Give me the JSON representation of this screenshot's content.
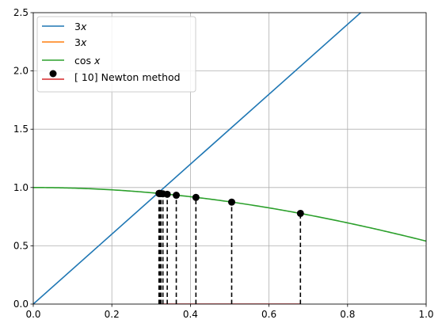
{
  "chart_data": {
    "type": "line",
    "xlim": [
      0,
      1
    ],
    "ylim": [
      0,
      2.5
    ],
    "xticks": [
      "0.0",
      "0.2",
      "0.4",
      "0.6",
      "0.8",
      "1.0"
    ],
    "yticks": [
      "0.0",
      "0.5",
      "1.0",
      "1.5",
      "2.0",
      "2.5"
    ],
    "xtick_values": [
      0,
      0.2,
      0.4,
      0.6,
      0.8,
      1.0
    ],
    "ytick_values": [
      0,
      0.5,
      1.0,
      1.5,
      2.0,
      2.5
    ],
    "grid": true,
    "legend_position": "top-left",
    "series": [
      {
        "name": "3x",
        "legend_label": "3x",
        "color": "#1f77b4",
        "x": [
          0,
          1
        ],
        "y": [
          0,
          3
        ]
      },
      {
        "name": "3x",
        "legend_label": "3x",
        "color": "#ff7f0e",
        "x": [],
        "y": []
      },
      {
        "name": "cos x",
        "legend_label": "cos x",
        "color": "#2ca02c",
        "function": "cos",
        "x": [
          0,
          1
        ]
      },
      {
        "name": "[ 10] Newton method",
        "legend_label": "[ 10] Newton method",
        "color": "#000000",
        "stem_color": "#d62728",
        "x": [
          0.68,
          0.505,
          0.414,
          0.364,
          0.341,
          0.33,
          0.325,
          0.322,
          0.3205,
          0.32
        ],
        "y": [
          0.778,
          0.875,
          0.915,
          0.934,
          0.942,
          0.946,
          0.948,
          0.949,
          0.949,
          0.949
        ]
      }
    ]
  }
}
